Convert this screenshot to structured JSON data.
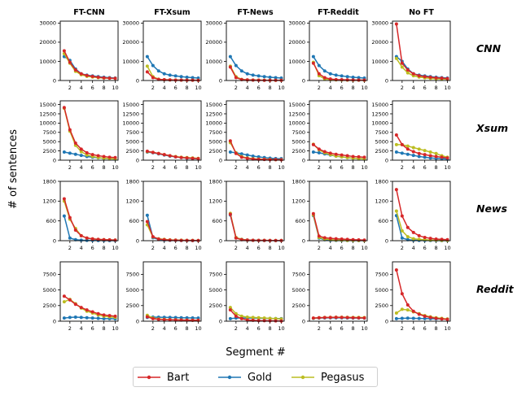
{
  "chart_data": {
    "type": "line",
    "ylabel": "# of sentences",
    "xlabel": "Segment #",
    "x": [
      1,
      2,
      3,
      4,
      5,
      6,
      7,
      8,
      9,
      10
    ],
    "xticks": [
      2,
      4,
      6,
      8,
      10
    ],
    "xlim": [
      0.3,
      10.5
    ],
    "column_titles": [
      "FT-CNN",
      "FT-Xsum",
      "FT-News",
      "FT-Reddit",
      "No FT"
    ],
    "row_labels": [
      "CNN",
      "Xsum",
      "News",
      "Reddit"
    ],
    "row_axes": [
      {
        "ylim": [
          0,
          31000
        ],
        "yticks": [
          0,
          10000,
          20000,
          30000
        ],
        "yticklabels": [
          "0",
          "10000",
          "20000",
          "30000"
        ]
      },
      {
        "ylim": [
          0,
          16000
        ],
        "yticks": [
          0,
          2500,
          5000,
          7500,
          10000,
          12500,
          15000
        ],
        "yticklabels": [
          "0",
          "2500",
          "5000",
          "7500",
          "10000",
          "12500",
          "15000"
        ]
      },
      {
        "ylim": [
          0,
          1800
        ],
        "yticks": [
          0,
          600,
          1200,
          1800
        ],
        "yticklabels": [
          "0",
          "600",
          "1200",
          "1800"
        ]
      },
      {
        "ylim": [
          0,
          9500
        ],
        "yticks": [
          0,
          2500,
          5000,
          7500
        ],
        "yticklabels": [
          "0",
          "2500",
          "5000",
          "7500"
        ]
      }
    ],
    "colors": {
      "Bart": "#d62728",
      "Gold": "#1f77b4",
      "Pegasus": "#bcbd22"
    },
    "legend": [
      "Bart",
      "Gold",
      "Pegasus"
    ],
    "panels": [
      [
        {
          "Bart": [
            15500,
            9500,
            5500,
            3500,
            2600,
            2100,
            1700,
            1400,
            1200,
            1100
          ],
          "Gold": [
            12500,
            10500,
            6000,
            3500,
            2800,
            2400,
            2000,
            1700,
            1500,
            1300
          ],
          "Pegasus": [
            14000,
            9000,
            4800,
            3000,
            2200,
            1800,
            1500,
            1300,
            1200,
            1100
          ]
        },
        {
          "Bart": [
            4500,
            1500,
            600,
            400,
            300,
            200,
            200,
            150,
            150,
            120
          ],
          "Gold": [
            12500,
            7800,
            5000,
            3500,
            2800,
            2400,
            2000,
            1700,
            1500,
            1300
          ],
          "Pegasus": [
            7500,
            2000,
            700,
            400,
            300,
            250,
            200,
            150,
            150,
            120
          ]
        },
        {
          "Bart": [
            7000,
            1500,
            500,
            300,
            200,
            150,
            120,
            100,
            100,
            100
          ],
          "Gold": [
            12500,
            7800,
            5000,
            3500,
            2800,
            2400,
            2000,
            1700,
            1500,
            1300
          ],
          "Pegasus": [
            7500,
            2000,
            600,
            300,
            250,
            200,
            150,
            120,
            100,
            100
          ]
        },
        {
          "Bart": [
            9000,
            3500,
            1500,
            800,
            500,
            400,
            300,
            250,
            200,
            200
          ],
          "Gold": [
            12500,
            7800,
            5000,
            3500,
            2800,
            2400,
            2000,
            1700,
            1500,
            1300
          ],
          "Pegasus": [
            9500,
            2500,
            800,
            500,
            300,
            250,
            200,
            150,
            150,
            120
          ]
        },
        {
          "Bart": [
            29500,
            9000,
            5500,
            3500,
            2500,
            2000,
            1700,
            1400,
            1200,
            1000
          ],
          "Gold": [
            12500,
            10000,
            6000,
            3500,
            2800,
            2400,
            2000,
            1700,
            1500,
            1300
          ],
          "Pegasus": [
            11500,
            7000,
            4000,
            2500,
            1800,
            1400,
            1100,
            900,
            800,
            700
          ]
        }
      ],
      [
        {
          "Bart": [
            14200,
            8200,
            4600,
            3000,
            2000,
            1500,
            1200,
            1000,
            800,
            700
          ],
          "Gold": [
            2200,
            1900,
            1600,
            1300,
            1000,
            800,
            650,
            500,
            400,
            300
          ],
          "Pegasus": [
            14000,
            7800,
            4000,
            2300,
            1400,
            1000,
            700,
            550,
            450,
            350
          ]
        },
        {
          "Bart": [
            2400,
            2100,
            1800,
            1500,
            1200,
            900,
            700,
            600,
            500,
            400
          ],
          "Gold": [
            2200,
            2000,
            1700,
            1400,
            1100,
            900,
            700,
            550,
            450,
            400
          ],
          "Pegasus": [
            2300,
            2100,
            1800,
            1500,
            1200,
            1000,
            800,
            700,
            600,
            500
          ]
        },
        {
          "Bart": [
            5200,
            1800,
            800,
            500,
            300,
            250,
            200,
            150,
            150,
            120
          ],
          "Gold": [
            2200,
            2000,
            1700,
            1400,
            1100,
            900,
            700,
            550,
            450,
            400
          ],
          "Pegasus": [
            4700,
            2000,
            1000,
            600,
            400,
            300,
            250,
            200,
            150,
            150
          ]
        },
        {
          "Bart": [
            4200,
            3000,
            2300,
            1900,
            1600,
            1400,
            1200,
            1000,
            900,
            800
          ],
          "Gold": [
            2200,
            2000,
            1700,
            1400,
            1100,
            900,
            700,
            550,
            450,
            400
          ],
          "Pegasus": [
            4300,
            2800,
            2000,
            1500,
            1100,
            900,
            700,
            550,
            450,
            350
          ]
        },
        {
          "Bart": [
            6800,
            4200,
            3000,
            2300,
            1800,
            1500,
            1200,
            1000,
            800,
            600
          ],
          "Gold": [
            2200,
            1900,
            1600,
            1300,
            1000,
            800,
            600,
            500,
            400,
            300
          ],
          "Pegasus": [
            4200,
            4200,
            3800,
            3400,
            3000,
            2600,
            2200,
            1800,
            1200,
            800
          ]
        }
      ],
      [
        {
          "Bart": [
            1270,
            700,
            320,
            150,
            80,
            55,
            40,
            30,
            25,
            20
          ],
          "Gold": [
            750,
            80,
            30,
            15,
            10,
            8,
            5,
            5,
            3,
            2
          ],
          "Pegasus": [
            1200,
            650,
            370,
            150,
            80,
            55,
            40,
            30,
            25,
            20
          ]
        },
        {
          "Bart": [
            580,
            120,
            50,
            30,
            20,
            15,
            10,
            8,
            6,
            5
          ],
          "Gold": [
            770,
            90,
            40,
            20,
            12,
            8,
            5,
            5,
            3,
            2
          ],
          "Pegasus": [
            480,
            110,
            60,
            40,
            25,
            20,
            15,
            10,
            8,
            5
          ]
        },
        {
          "Bart": [
            800,
            80,
            30,
            20,
            12,
            10,
            8,
            5,
            5,
            5
          ],
          "Gold": [
            780,
            90,
            40,
            20,
            12,
            8,
            5,
            5,
            3,
            2
          ],
          "Pegasus": [
            830,
            100,
            40,
            20,
            12,
            10,
            8,
            5,
            5,
            5
          ]
        },
        {
          "Bart": [
            820,
            140,
            90,
            70,
            60,
            50,
            40,
            30,
            25,
            20
          ],
          "Gold": [
            760,
            80,
            30,
            15,
            10,
            8,
            5,
            5,
            3,
            2
          ],
          "Pegasus": [
            780,
            100,
            50,
            30,
            20,
            15,
            10,
            8,
            6,
            5
          ]
        },
        {
          "Bart": [
            1550,
            750,
            400,
            250,
            150,
            100,
            70,
            50,
            40,
            30
          ],
          "Gold": [
            760,
            80,
            30,
            15,
            10,
            8,
            5,
            5,
            3,
            2
          ],
          "Pegasus": [
            900,
            300,
            120,
            60,
            40,
            30,
            20,
            15,
            10,
            8
          ]
        }
      ],
      [
        {
          "Bart": [
            4000,
            3400,
            2700,
            2200,
            1800,
            1500,
            1200,
            1000,
            900,
            800
          ],
          "Gold": [
            500,
            600,
            650,
            600,
            550,
            500,
            450,
            400,
            400,
            380
          ],
          "Pegasus": [
            3100,
            3500,
            2800,
            2100,
            1600,
            1300,
            1000,
            800,
            700,
            600
          ]
        },
        {
          "Bart": [
            700,
            400,
            300,
            250,
            220,
            200,
            180,
            160,
            150,
            140
          ],
          "Gold": [
            600,
            650,
            640,
            620,
            600,
            580,
            560,
            540,
            520,
            500
          ],
          "Pegasus": [
            950,
            500,
            350,
            300,
            250,
            220,
            200,
            180,
            160,
            150
          ]
        },
        {
          "Bart": [
            1800,
            800,
            400,
            200,
            150,
            100,
            80,
            60,
            50,
            40
          ],
          "Gold": [
            400,
            500,
            520,
            510,
            500,
            480,
            460,
            440,
            420,
            400
          ],
          "Pegasus": [
            2200,
            1200,
            800,
            650,
            600,
            550,
            500,
            450,
            400,
            350
          ]
        },
        {
          "Bart": [
            500,
            550,
            580,
            600,
            620,
            600,
            580,
            560,
            540,
            520
          ],
          "Gold": [
            450,
            500,
            520,
            530,
            540,
            530,
            520,
            510,
            500,
            490
          ],
          "Pegasus": [
            480,
            550,
            600,
            620,
            640,
            630,
            620,
            610,
            600,
            590
          ]
        },
        {
          "Bart": [
            8200,
            4400,
            2600,
            1600,
            1100,
            800,
            600,
            450,
            350,
            300
          ],
          "Gold": [
            400,
            450,
            480,
            460,
            440,
            420,
            400,
            380,
            360,
            340
          ],
          "Pegasus": [
            1300,
            1900,
            1800,
            1500,
            1200,
            900,
            700,
            550,
            450,
            350
          ]
        }
      ]
    ]
  }
}
